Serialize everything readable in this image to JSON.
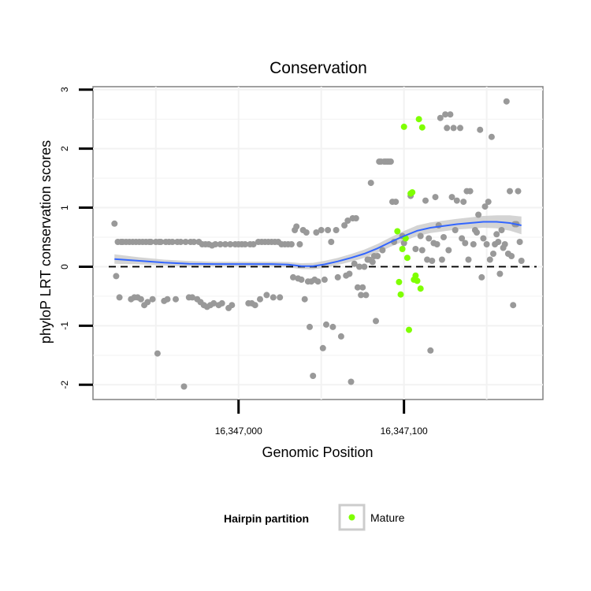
{
  "chart_data": {
    "type": "scatter",
    "title": "Conservation",
    "xlabel": "Genomic Position",
    "ylabel": "phyloP LRT conservation scores",
    "xlim": [
      16346912,
      16347184
    ],
    "ylim": [
      -2.25,
      3.05
    ],
    "x_ticks": [
      {
        "value": 16347000,
        "label": "16,347,000"
      },
      {
        "value": 16347100,
        "label": "16,347,100"
      }
    ],
    "y_ticks": [
      {
        "value": -2,
        "label": "-2"
      },
      {
        "value": -1,
        "label": "-1"
      },
      {
        "value": 0,
        "label": "0"
      },
      {
        "value": 1,
        "label": "1"
      },
      {
        "value": 2,
        "label": "2"
      },
      {
        "value": 3,
        "label": "3"
      }
    ],
    "reference_line": {
      "y": 0,
      "style": "dashed"
    },
    "grid": true,
    "legend": {
      "title": "Hairpin partition",
      "position": "bottom",
      "entries": [
        {
          "label": "Mature",
          "color": "#7fff00"
        }
      ]
    },
    "colors": {
      "other": "#999999",
      "mature": "#7fff00",
      "smooth": "#3366ff",
      "ribbon": "#cccccc"
    },
    "series": [
      {
        "category": "other",
        "points": [
          [
            16346925,
            0.73
          ],
          [
            16346926,
            -0.16
          ],
          [
            16346927,
            0.42
          ],
          [
            16346928,
            -0.52
          ],
          [
            16346929,
            0.42
          ],
          [
            16346930,
            0.42
          ],
          [
            16346932,
            0.42
          ],
          [
            16346934,
            0.42
          ],
          [
            16346935,
            -0.55
          ],
          [
            16346936,
            0.42
          ],
          [
            16346937,
            -0.52
          ],
          [
            16346938,
            0.42
          ],
          [
            16346939,
            -0.52
          ],
          [
            16346940,
            0.42
          ],
          [
            16346941,
            -0.55
          ],
          [
            16346942,
            0.42
          ],
          [
            16346943,
            -0.65
          ],
          [
            16346944,
            0.42
          ],
          [
            16346945,
            -0.6
          ],
          [
            16346946,
            0.42
          ],
          [
            16346947,
            0.42
          ],
          [
            16346948,
            -0.55
          ],
          [
            16346950,
            0.42
          ],
          [
            16346951,
            -1.47
          ],
          [
            16346952,
            0.42
          ],
          [
            16346953,
            0.42
          ],
          [
            16346955,
            -0.58
          ],
          [
            16346956,
            0.42
          ],
          [
            16346957,
            -0.55
          ],
          [
            16346958,
            0.42
          ],
          [
            16346960,
            0.42
          ],
          [
            16346962,
            -0.55
          ],
          [
            16346963,
            0.42
          ],
          [
            16346965,
            0.42
          ],
          [
            16346967,
            -2.03
          ],
          [
            16346968,
            0.42
          ],
          [
            16346970,
            -0.52
          ],
          [
            16346971,
            0.42
          ],
          [
            16346972,
            -0.52
          ],
          [
            16346973,
            0.42
          ],
          [
            16346975,
            -0.55
          ],
          [
            16346976,
            0.42
          ],
          [
            16346977,
            -0.6
          ],
          [
            16346978,
            0.38
          ],
          [
            16346979,
            -0.65
          ],
          [
            16346980,
            0.38
          ],
          [
            16346981,
            -0.68
          ],
          [
            16346982,
            0.38
          ],
          [
            16346983,
            -0.65
          ],
          [
            16346984,
            0.36
          ],
          [
            16346985,
            -0.62
          ],
          [
            16346986,
            0.38
          ],
          [
            16346988,
            -0.65
          ],
          [
            16346989,
            0.38
          ],
          [
            16346990,
            -0.62
          ],
          [
            16346992,
            0.38
          ],
          [
            16346994,
            -0.7
          ],
          [
            16346995,
            0.38
          ],
          [
            16346996,
            -0.65
          ],
          [
            16346998,
            0.38
          ],
          [
            16347000,
            0.38
          ],
          [
            16347002,
            0.38
          ],
          [
            16347004,
            0.38
          ],
          [
            16347006,
            -0.62
          ],
          [
            16347007,
            0.38
          ],
          [
            16347008,
            -0.62
          ],
          [
            16347009,
            0.38
          ],
          [
            16347010,
            -0.65
          ],
          [
            16347012,
            0.42
          ],
          [
            16347013,
            -0.55
          ],
          [
            16347014,
            0.42
          ],
          [
            16347016,
            0.42
          ],
          [
            16347017,
            -0.48
          ],
          [
            16347018,
            0.42
          ],
          [
            16347020,
            0.42
          ],
          [
            16347021,
            -0.52
          ],
          [
            16347022,
            0.42
          ],
          [
            16347024,
            0.42
          ],
          [
            16347025,
            -0.52
          ],
          [
            16347026,
            0.38
          ],
          [
            16347028,
            0.38
          ],
          [
            16347030,
            0.38
          ],
          [
            16347032,
            0.38
          ],
          [
            16347033,
            -0.18
          ],
          [
            16347034,
            0.62
          ],
          [
            16347035,
            0.68
          ],
          [
            16347036,
            -0.2
          ],
          [
            16347037,
            0.38
          ],
          [
            16347038,
            -0.22
          ],
          [
            16347039,
            0.62
          ],
          [
            16347040,
            -0.55
          ],
          [
            16347041,
            0.58
          ],
          [
            16347042,
            -0.25
          ],
          [
            16347043,
            -1.02
          ],
          [
            16347044,
            -0.25
          ],
          [
            16347045,
            -1.85
          ],
          [
            16347046,
            -0.22
          ],
          [
            16347047,
            0.58
          ],
          [
            16347048,
            -0.25
          ],
          [
            16347050,
            0.62
          ],
          [
            16347051,
            -1.38
          ],
          [
            16347052,
            -0.22
          ],
          [
            16347053,
            -0.98
          ],
          [
            16347054,
            0.62
          ],
          [
            16347056,
            0.42
          ],
          [
            16347057,
            -1.02
          ],
          [
            16347059,
            0.62
          ],
          [
            16347060,
            -0.18
          ],
          [
            16347062,
            -1.18
          ],
          [
            16347064,
            0.7
          ],
          [
            16347065,
            -0.15
          ],
          [
            16347066,
            0.78
          ],
          [
            16347067,
            -0.12
          ],
          [
            16347068,
            -1.95
          ],
          [
            16347069,
            0.82
          ],
          [
            16347070,
            0.05
          ],
          [
            16347071,
            0.82
          ],
          [
            16347072,
            -0.35
          ],
          [
            16347073,
            0.0
          ],
          [
            16347074,
            -0.48
          ],
          [
            16347075,
            -0.35
          ],
          [
            16347076,
            0.0
          ],
          [
            16347077,
            -0.48
          ],
          [
            16347078,
            0.12
          ],
          [
            16347079,
            0.12
          ],
          [
            16347080,
            1.42
          ],
          [
            16347081,
            0.08
          ],
          [
            16347082,
            0.18
          ],
          [
            16347083,
            -0.92
          ],
          [
            16347084,
            0.18
          ],
          [
            16347085,
            1.78
          ],
          [
            16347086,
            1.78
          ],
          [
            16347087,
            0.28
          ],
          [
            16347088,
            1.78
          ],
          [
            16347089,
            1.78
          ],
          [
            16347090,
            1.78
          ],
          [
            16347091,
            1.78
          ],
          [
            16347092,
            1.78
          ],
          [
            16347093,
            1.1
          ],
          [
            16347094,
            0.42
          ],
          [
            16347095,
            1.1
          ],
          [
            16347099,
            0.52
          ],
          [
            16347100,
            0.4
          ],
          [
            16347104,
            1.2
          ],
          [
            16347107,
            0.3
          ],
          [
            16347110,
            0.52
          ],
          [
            16347111,
            0.28
          ],
          [
            16347113,
            1.12
          ],
          [
            16347114,
            0.12
          ],
          [
            16347115,
            0.48
          ],
          [
            16347116,
            -1.42
          ],
          [
            16347117,
            0.1
          ],
          [
            16347118,
            0.4
          ],
          [
            16347119,
            1.18
          ],
          [
            16347120,
            0.38
          ],
          [
            16347121,
            0.7
          ],
          [
            16347122,
            2.52
          ],
          [
            16347123,
            0.12
          ],
          [
            16347124,
            0.5
          ],
          [
            16347125,
            2.58
          ],
          [
            16347126,
            2.35
          ],
          [
            16347127,
            0.28
          ],
          [
            16347128,
            2.58
          ],
          [
            16347129,
            1.18
          ],
          [
            16347130,
            2.35
          ],
          [
            16347131,
            0.62
          ],
          [
            16347132,
            1.12
          ],
          [
            16347134,
            2.35
          ],
          [
            16347135,
            0.48
          ],
          [
            16347136,
            1.1
          ],
          [
            16347137,
            0.4
          ],
          [
            16347138,
            1.28
          ],
          [
            16347139,
            0.12
          ],
          [
            16347140,
            1.28
          ],
          [
            16347142,
            0.38
          ],
          [
            16347143,
            0.62
          ],
          [
            16347144,
            0.58
          ],
          [
            16347145,
            0.88
          ],
          [
            16347146,
            2.32
          ],
          [
            16347147,
            -0.18
          ],
          [
            16347148,
            0.48
          ],
          [
            16347149,
            1.02
          ],
          [
            16347150,
            0.38
          ],
          [
            16347151,
            1.1
          ],
          [
            16347152,
            0.12
          ],
          [
            16347153,
            2.2
          ],
          [
            16347154,
            0.22
          ],
          [
            16347155,
            0.38
          ],
          [
            16347156,
            0.55
          ],
          [
            16347157,
            0.42
          ],
          [
            16347158,
            -0.12
          ],
          [
            16347159,
            0.62
          ],
          [
            16347160,
            0.32
          ],
          [
            16347161,
            0.38
          ],
          [
            16347162,
            2.8
          ],
          [
            16347163,
            0.22
          ],
          [
            16347164,
            1.28
          ],
          [
            16347165,
            0.18
          ],
          [
            16347166,
            -0.65
          ],
          [
            16347167,
            0.72
          ],
          [
            16347168,
            0.72
          ],
          [
            16347169,
            1.28
          ],
          [
            16347170,
            0.42
          ],
          [
            16347171,
            0.1
          ]
        ]
      },
      {
        "category": "mature",
        "points": [
          [
            16347096,
            0.6
          ],
          [
            16347097,
            -0.26
          ],
          [
            16347098,
            -0.47
          ],
          [
            16347099,
            0.3
          ],
          [
            16347100,
            2.37
          ],
          [
            16347101,
            0.48
          ],
          [
            16347102,
            0.15
          ],
          [
            16347103,
            -1.07
          ],
          [
            16347104,
            1.24
          ],
          [
            16347105,
            1.26
          ],
          [
            16347106,
            -0.22
          ],
          [
            16347107,
            -0.15
          ],
          [
            16347108,
            -0.24
          ],
          [
            16347109,
            2.5
          ],
          [
            16347110,
            -0.37
          ],
          [
            16347111,
            2.36
          ]
        ]
      }
    ],
    "smooth": [
      [
        16346925,
        0.13
      ],
      [
        16346940,
        0.1
      ],
      [
        16346955,
        0.07
      ],
      [
        16346970,
        0.05
      ],
      [
        16346985,
        0.045
      ],
      [
        16347000,
        0.045
      ],
      [
        16347010,
        0.045
      ],
      [
        16347020,
        0.045
      ],
      [
        16347030,
        0.035
      ],
      [
        16347038,
        0.01
      ],
      [
        16347045,
        0.01
      ],
      [
        16347052,
        0.04
      ],
      [
        16347060,
        0.09
      ],
      [
        16347068,
        0.15
      ],
      [
        16347076,
        0.22
      ],
      [
        16347084,
        0.31
      ],
      [
        16347092,
        0.42
      ],
      [
        16347100,
        0.52
      ],
      [
        16347108,
        0.61
      ],
      [
        16347116,
        0.66
      ],
      [
        16347124,
        0.69
      ],
      [
        16347132,
        0.72
      ],
      [
        16347140,
        0.74
      ],
      [
        16347148,
        0.76
      ],
      [
        16347156,
        0.76
      ],
      [
        16347164,
        0.74
      ],
      [
        16347171,
        0.7
      ]
    ],
    "ribbon_halfwidth": [
      0.08,
      0.06,
      0.05,
      0.045,
      0.04,
      0.04,
      0.04,
      0.04,
      0.045,
      0.05,
      0.055,
      0.06,
      0.06,
      0.065,
      0.07,
      0.075,
      0.08,
      0.085,
      0.09,
      0.09,
      0.09,
      0.09,
      0.095,
      0.1,
      0.11,
      0.13,
      0.15
    ]
  }
}
